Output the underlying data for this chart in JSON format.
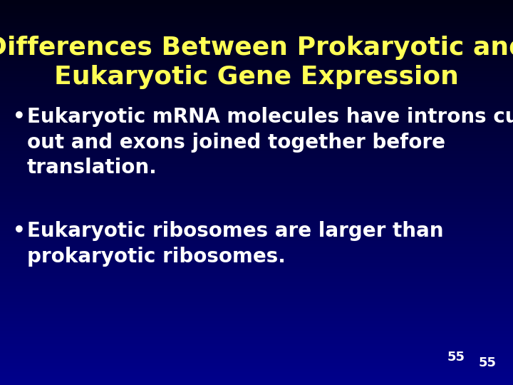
{
  "title_line1": "Differences Between Prokaryotic and",
  "title_line2": "Eukaryotic Gene Expression",
  "title_color": "#FFFF55",
  "title_fontsize": 26,
  "bullet1_text": "Eukaryotic mRNA molecules have introns cut\nout and exons joined together before\ntranslation.",
  "bullet2_text": "Eukaryotic ribosomes are larger than\nprokaryotic ribosomes.",
  "bullet_color": "#FFFFFF",
  "bullet_fontsize": 20,
  "page_number": "55",
  "page_color": "#FFFFFF",
  "page_fontsize": 13,
  "bg_color_topleft": [
    0,
    0,
    20
  ],
  "bg_color_bottomright": [
    0,
    0,
    160
  ]
}
